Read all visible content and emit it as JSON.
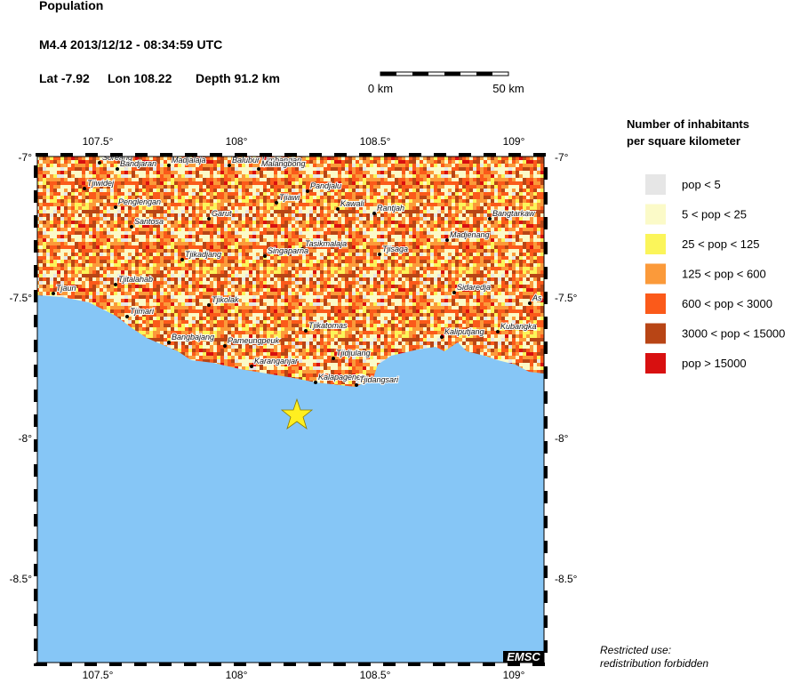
{
  "header": {
    "title": "Population",
    "event": "M4.4  2013/12/12 - 08:34:59 UTC",
    "lat": "Lat -7.92",
    "lon": "Lon 108.22",
    "depth": "Depth  91.2 km"
  },
  "scale": {
    "start": "0 km",
    "end": "50 km"
  },
  "map": {
    "lon_labels": [
      "107.5°",
      "108°",
      "108.5°",
      "109°"
    ],
    "lat_labels": [
      "-7°",
      "-7.5°",
      "-8°",
      "-8.5°"
    ],
    "cities": [
      "Soreang",
      "Bandjaran",
      "Madjalaja",
      "Balubur Limbangan",
      "Malangbong",
      "Tjiwidej",
      "Penglengan",
      "Santosa",
      "Garut",
      "Tjiawi",
      "Pandjalu",
      "Kawali",
      "Rantjah",
      "Tasikmalaja",
      "Singaparna",
      "Tjikadjang",
      "Tjisaga",
      "Tjitalahab",
      "Tjaun",
      "Tjikolak",
      "Tjimari",
      "Tjikatomas",
      "Bangbajang",
      "Pameungpeuk",
      "Karanganjar",
      "Tjidjulang",
      "Kalapagenep",
      "Tjidangsari",
      "Bangtarkaw",
      "Madjenang",
      "Sidaredja",
      "Kaliputjang",
      "Kubangka",
      "As"
    ],
    "credit": "EMSC"
  },
  "legend": {
    "title": [
      "Number of inhabitants",
      "per square kilometer"
    ],
    "items": [
      {
        "label": "pop < 5",
        "color": "#e6e6e6"
      },
      {
        "label": "5 < pop < 25",
        "color": "#fbfac8"
      },
      {
        "label": "25 < pop < 125",
        "color": "#fbf55a"
      },
      {
        "label": "125 < pop < 600",
        "color": "#fb9a3a"
      },
      {
        "label": "600 < pop < 3000",
        "color": "#fb5a1a"
      },
      {
        "label": "3000 < pop < 15000",
        "color": "#b84515"
      },
      {
        "label": "pop > 15000",
        "color": "#d81010"
      }
    ]
  },
  "footer": [
    "Restricted use:",
    "redistribution forbidden"
  ]
}
